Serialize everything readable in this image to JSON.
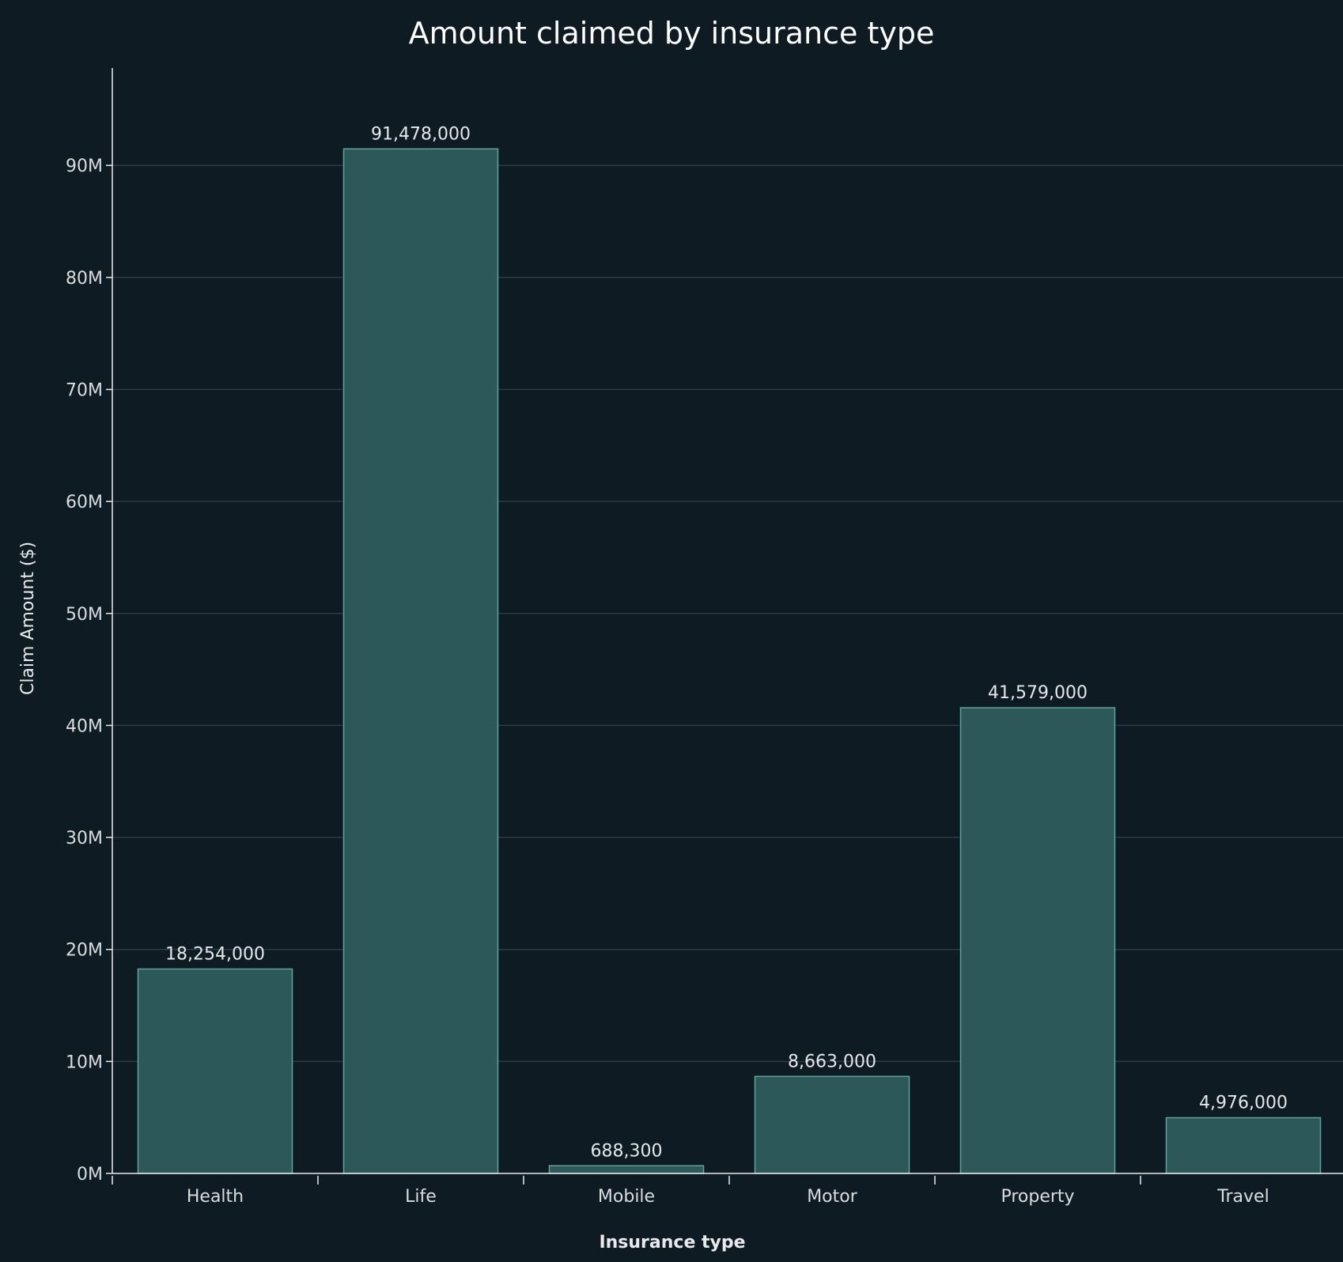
{
  "chart_data": {
    "type": "bar",
    "title": "Amount claimed by insurance type",
    "xlabel": "Insurance type",
    "ylabel": "Claim Amount ($)",
    "categories": [
      "Health",
      "Life",
      "Mobile",
      "Motor",
      "Property",
      "Travel"
    ],
    "values": [
      18254000,
      91478000,
      688300,
      8663000,
      41579000,
      4976000
    ],
    "value_labels": [
      "18,254,000",
      "91,478,000",
      "688,300",
      "8,663,000",
      "41,579,000",
      "4,976,000"
    ],
    "ylim": [
      0,
      98700000
    ],
    "yticks": [
      0,
      10000000,
      20000000,
      30000000,
      40000000,
      50000000,
      60000000,
      70000000,
      80000000,
      90000000
    ],
    "ytick_labels": [
      "0M",
      "10M",
      "20M",
      "30M",
      "40M",
      "50M",
      "60M",
      "70M",
      "80M",
      "90M"
    ],
    "grid": true,
    "colors": {
      "background": "#0f1b23",
      "bar_fill": "#2c5859",
      "bar_edge": "#5fa39c",
      "grid": "#2a3a44"
    }
  }
}
